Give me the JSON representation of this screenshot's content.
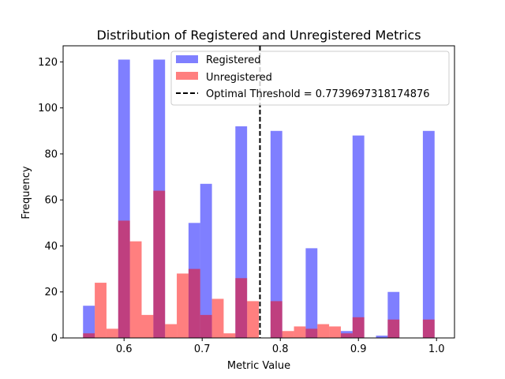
{
  "chart_data": {
    "type": "histogram",
    "title": "Distribution of Registered and Unregistered Metrics",
    "xlabel": "Metric Value",
    "ylabel": "Frequency",
    "xlim": [
      0.522,
      1.023
    ],
    "ylim": [
      0,
      127
    ],
    "xticks": [
      0.6,
      0.7,
      0.8,
      0.9,
      1.0
    ],
    "xtick_labels": [
      "0.6",
      "0.7",
      "0.8",
      "0.9",
      "1.0"
    ],
    "yticks": [
      0,
      20,
      40,
      60,
      80,
      100,
      120
    ],
    "ytick_labels": [
      "0",
      "20",
      "40",
      "60",
      "80",
      "100",
      "120"
    ],
    "legend_position": "top-right",
    "grid": false,
    "series": [
      {
        "name": "Registered",
        "color": "#0000ff",
        "opacity": 0.5,
        "bins": [
          {
            "x0": 0.5475,
            "x1": 0.5625,
            "count": 14
          },
          {
            "x0": 0.5925,
            "x1": 0.6075,
            "count": 121
          },
          {
            "x0": 0.6375,
            "x1": 0.6525,
            "count": 121
          },
          {
            "x0": 0.6825,
            "x1": 0.6975,
            "count": 50
          },
          {
            "x0": 0.6975,
            "x1": 0.7125,
            "count": 67
          },
          {
            "x0": 0.7425,
            "x1": 0.7575,
            "count": 92
          },
          {
            "x0": 0.7875,
            "x1": 0.8025,
            "count": 90
          },
          {
            "x0": 0.8325,
            "x1": 0.8475,
            "count": 39
          },
          {
            "x0": 0.8775,
            "x1": 0.8925,
            "count": 3
          },
          {
            "x0": 0.8925,
            "x1": 0.9075,
            "count": 88
          },
          {
            "x0": 0.9225,
            "x1": 0.9375,
            "count": 1
          },
          {
            "x0": 0.9375,
            "x1": 0.9525,
            "count": 20
          },
          {
            "x0": 0.9825,
            "x1": 0.9975,
            "count": 90
          }
        ]
      },
      {
        "name": "Unregistered",
        "color": "#ff0000",
        "opacity": 0.5,
        "bins": [
          {
            "x0": 0.5475,
            "x1": 0.5625,
            "count": 2
          },
          {
            "x0": 0.5625,
            "x1": 0.5775,
            "count": 24
          },
          {
            "x0": 0.5775,
            "x1": 0.5925,
            "count": 4
          },
          {
            "x0": 0.5925,
            "x1": 0.6075,
            "count": 51
          },
          {
            "x0": 0.6075,
            "x1": 0.6225,
            "count": 42
          },
          {
            "x0": 0.6225,
            "x1": 0.6375,
            "count": 10
          },
          {
            "x0": 0.6375,
            "x1": 0.6525,
            "count": 64
          },
          {
            "x0": 0.6525,
            "x1": 0.6675,
            "count": 6
          },
          {
            "x0": 0.6675,
            "x1": 0.6825,
            "count": 28
          },
          {
            "x0": 0.6825,
            "x1": 0.6975,
            "count": 30
          },
          {
            "x0": 0.6975,
            "x1": 0.7125,
            "count": 10
          },
          {
            "x0": 0.7125,
            "x1": 0.7275,
            "count": 17
          },
          {
            "x0": 0.7275,
            "x1": 0.7425,
            "count": 2
          },
          {
            "x0": 0.7425,
            "x1": 0.7575,
            "count": 26
          },
          {
            "x0": 0.7575,
            "x1": 0.7725,
            "count": 16
          },
          {
            "x0": 0.7725,
            "x1": 0.7875,
            "count": 0
          },
          {
            "x0": 0.7875,
            "x1": 0.8025,
            "count": 16
          },
          {
            "x0": 0.8025,
            "x1": 0.8175,
            "count": 3
          },
          {
            "x0": 0.8175,
            "x1": 0.8325,
            "count": 5
          },
          {
            "x0": 0.8325,
            "x1": 0.8475,
            "count": 4
          },
          {
            "x0": 0.8475,
            "x1": 0.8625,
            "count": 6
          },
          {
            "x0": 0.8625,
            "x1": 0.8775,
            "count": 5
          },
          {
            "x0": 0.8775,
            "x1": 0.8925,
            "count": 2
          },
          {
            "x0": 0.8925,
            "x1": 0.9075,
            "count": 9
          },
          {
            "x0": 0.9375,
            "x1": 0.9525,
            "count": 8
          },
          {
            "x0": 0.9825,
            "x1": 0.9975,
            "count": 8
          }
        ]
      }
    ],
    "threshold": {
      "label": "Optimal Threshold = 0.7739697318174876",
      "value": 0.7739697318174876,
      "color": "#000000",
      "style": "dashed"
    }
  }
}
